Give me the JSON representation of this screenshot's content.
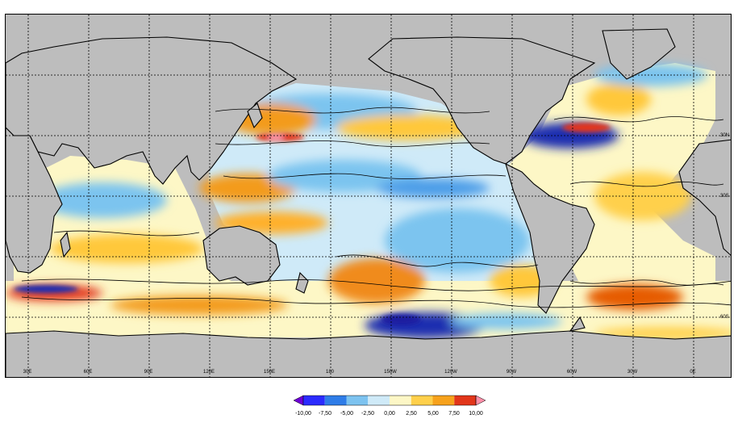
{
  "map": {
    "projection": "equirectangular",
    "central_longitude": 180,
    "lon_ticks": [
      "30E",
      "60E",
      "90E",
      "120E",
      "150E",
      "180",
      "150W",
      "120W",
      "90W",
      "60W",
      "30W",
      "0E"
    ],
    "lat_ticks": [
      "30N",
      "30S",
      "60S"
    ],
    "land_color": "#bdbdbd",
    "graticule": "dotted",
    "description_colors": {
      "neutral": "#fdf7c6",
      "positive": "#ffc83a",
      "strong_positive": "#e65c00",
      "negative": "#7cc4ef",
      "strong_negative": "#1e2fb0"
    }
  },
  "colorbar": {
    "ticks": [
      "-10,00",
      "-7,50",
      "-5,00",
      "-2,50",
      "0,00",
      "2,50",
      "5,00",
      "7,50",
      "10,00"
    ],
    "colors": [
      "#6f00d8",
      "#2b2bff",
      "#2f7de8",
      "#7dc3f0",
      "#cfeaf8",
      "#fdf7c6",
      "#ffd04b",
      "#f7a21c",
      "#e2361a",
      "#ff8fa8"
    ],
    "extend": "both"
  }
}
